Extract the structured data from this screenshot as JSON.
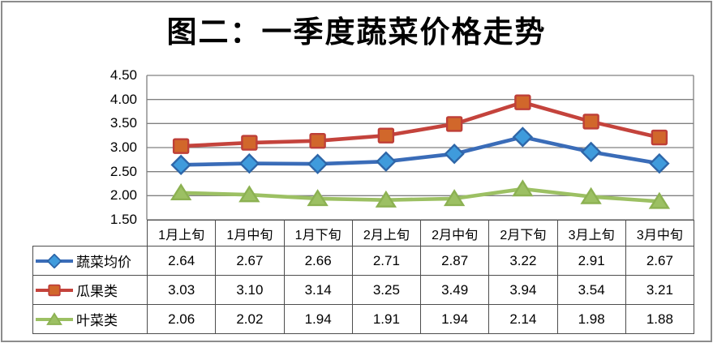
{
  "frame": {
    "background": "#FFFFFF",
    "border_color": "#8C8C8C"
  },
  "chart_data": {
    "type": "line",
    "title": "图二：一季度蔬菜价格走势",
    "categories": [
      "1月上旬",
      "1月中旬",
      "1月下旬",
      "2月上旬",
      "2月中旬",
      "2月下旬",
      "3月上旬",
      "3月中旬"
    ],
    "series": [
      {
        "name": "蔬菜均价",
        "marker": "diamond",
        "line_color": "#3A6CB8",
        "marker_fill": "#3F9BDC",
        "marker_stroke": "#2E66A8",
        "values": [
          2.64,
          2.67,
          2.66,
          2.71,
          2.87,
          3.22,
          2.91,
          2.67
        ]
      },
      {
        "name": "瓜果类",
        "marker": "square",
        "line_color": "#C4433C",
        "marker_fill": "#D1672B",
        "marker_stroke": "#BE3F38",
        "values": [
          3.03,
          3.1,
          3.14,
          3.25,
          3.49,
          3.94,
          3.54,
          3.21
        ]
      },
      {
        "name": "叶菜类",
        "marker": "triangle",
        "line_color": "#9CC063",
        "marker_fill": "#9CC063",
        "marker_stroke": "#8CB152",
        "values": [
          2.06,
          2.02,
          1.94,
          1.91,
          1.94,
          2.14,
          1.98,
          1.88
        ]
      }
    ],
    "yticks": [
      "4.50",
      "4.00",
      "3.50",
      "3.00",
      "2.50",
      "2.00",
      "1.50"
    ],
    "ylim": [
      1.5,
      4.5
    ],
    "grid": true,
    "gridline_color": "#808080",
    "axis_text_color": "#000000",
    "legend_position": "data-table-left",
    "value_decimals": 2
  }
}
